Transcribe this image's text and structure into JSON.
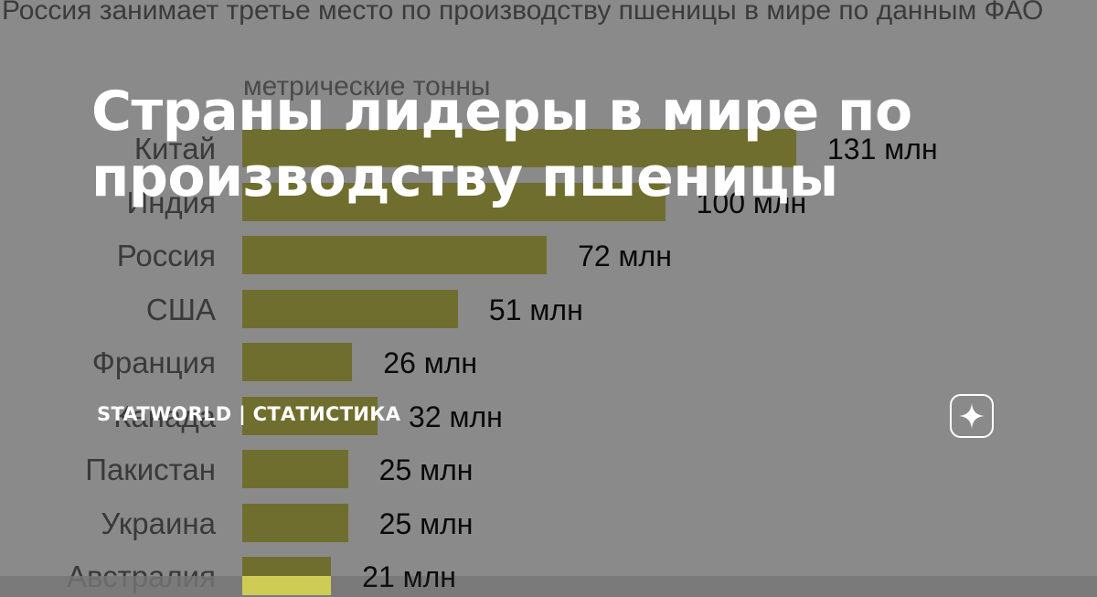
{
  "background_chart": {
    "title": "Россия занимает третье место по производству пшеницы в мире по данным ФАО",
    "unit_label": "метрические тонны",
    "bar_color": "#cfcc55",
    "chart_data": {
      "type": "bar",
      "orientation": "horizontal",
      "title": "Россия занимает третье место по производству пшеницы в мире по данным ФАО",
      "subtitle": "метрические тонны",
      "categories": [
        "Китай",
        "Индия",
        "Россия",
        "США",
        "Франция",
        "Канада",
        "Пакистан",
        "Украина",
        "Австралия"
      ],
      "values": [
        131,
        100,
        72,
        51,
        26,
        32,
        25,
        25,
        21
      ],
      "value_labels": [
        "131 млн",
        "100 млн",
        "72 млн",
        "51 млн",
        "26 млн",
        "32 млн",
        "25 млн",
        "25 млн",
        "21 млн"
      ],
      "xlim": [
        0,
        131
      ],
      "grid": false,
      "legend": "none"
    }
  },
  "headline": "Страны лидеры в мире по производству пшеницы",
  "channel": {
    "name": "STATWORLD | СТАТИСТИКА"
  },
  "logo": {
    "icon": "sparkle-star-icon"
  }
}
